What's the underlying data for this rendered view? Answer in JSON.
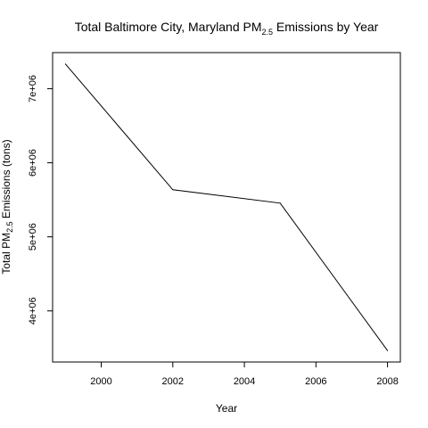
{
  "chart_data": {
    "type": "line",
    "title": {
      "prefix": "Total Baltimore City, Maryland PM",
      "sub": "2.5",
      "suffix": " Emissions by Year"
    },
    "xlabel": "Year",
    "ylabel": {
      "prefix": "Total PM",
      "sub": "2.5",
      "suffix": " Emissions (tons)"
    },
    "x": [
      1999,
      2002,
      2005,
      2008
    ],
    "y": [
      7332967,
      5635780,
      5454703,
      3464206
    ],
    "xlim": [
      1999,
      2008
    ],
    "ylim": [
      3464206,
      7332967
    ],
    "xticks": [
      2000,
      2002,
      2004,
      2006,
      2008
    ],
    "xtick_labels": [
      "2000",
      "2002",
      "2004",
      "2006",
      "2008"
    ],
    "yticks": [
      4000000,
      5000000,
      6000000,
      7000000
    ],
    "ytick_labels": [
      "4e+06",
      "5e+06",
      "6e+06",
      "7e+06"
    ],
    "grid": false,
    "line_color": "#000000"
  }
}
